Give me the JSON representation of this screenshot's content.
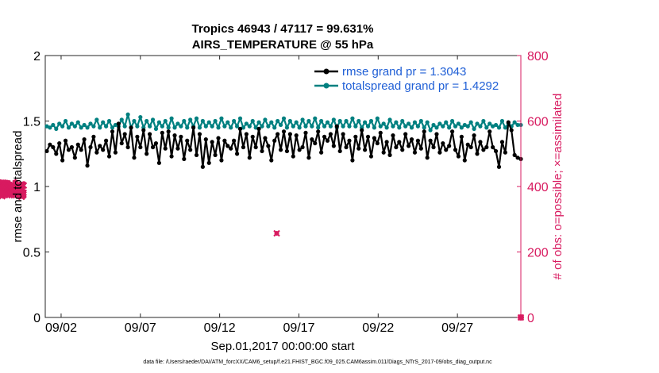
{
  "chart_data": {
    "type": "line",
    "title_line1": "Tropics 46943 / 47117 = 99.631%",
    "title_line2": "AIRS_TEMPERATURE @ 55 hPa",
    "xlabel": "Sep.01,2017 00:00:00 start",
    "ylabel_left": "rmse and totalspread",
    "ylabel_right": "# of obs: o=possible; ×=assimilated",
    "ylim_left": [
      0,
      2
    ],
    "ylim_right": [
      0,
      800
    ],
    "xlim": [
      0,
      30
    ],
    "yticks_left": [
      0,
      0.5,
      1,
      1.5,
      2
    ],
    "yticks_left_labels": [
      "0",
      "0.5",
      "1",
      "1.5",
      "2"
    ],
    "yticks_right": [
      0,
      200,
      400,
      600,
      800
    ],
    "yticks_right_labels": [
      "0",
      "200",
      "400",
      "600",
      "800"
    ],
    "xticks": [
      1,
      6,
      11,
      16,
      21,
      26
    ],
    "xtick_labels": [
      "09/02",
      "09/07",
      "09/12",
      "09/17",
      "09/22",
      "09/27"
    ],
    "legend": [
      {
        "label": "rmse grand pr = 1.3043",
        "color": "#000000"
      },
      {
        "label": "totalspread grand pr = 1.4292",
        "color": "#008080"
      }
    ],
    "colors": {
      "rmse": "#000000",
      "spread": "#008080",
      "obs": "#d81b60",
      "legend_text": "#1f5fd6",
      "right_axis": "#d81b60"
    },
    "series": [
      {
        "name": "rmse",
        "values": [
          1.27,
          1.32,
          1.3,
          1.25,
          1.33,
          1.2,
          1.35,
          1.28,
          1.3,
          1.22,
          1.32,
          1.28,
          1.36,
          1.16,
          1.3,
          1.38,
          1.26,
          1.31,
          1.28,
          1.35,
          1.23,
          1.42,
          1.26,
          1.48,
          1.33,
          1.4,
          1.3,
          1.45,
          1.22,
          1.38,
          1.3,
          1.43,
          1.25,
          1.4,
          1.3,
          1.33,
          1.18,
          1.41,
          1.29,
          1.42,
          1.23,
          1.39,
          1.29,
          1.38,
          1.21,
          1.35,
          1.28,
          1.45,
          1.24,
          1.4,
          1.15,
          1.36,
          1.18,
          1.34,
          1.24,
          1.37,
          1.2,
          1.35,
          1.31,
          1.29,
          1.35,
          1.25,
          1.44,
          1.3,
          1.4,
          1.22,
          1.38,
          1.3,
          1.44,
          1.27,
          1.37,
          1.31,
          1.2,
          1.35,
          1.4,
          1.28,
          1.42,
          1.27,
          1.4,
          1.23,
          1.39,
          1.28,
          1.3,
          1.41,
          1.22,
          1.36,
          1.33,
          1.42,
          1.26,
          1.38,
          1.35,
          1.4,
          1.31,
          1.46,
          1.27,
          1.4,
          1.3,
          1.35,
          1.2,
          1.38,
          1.29,
          1.43,
          1.28,
          1.38,
          1.23,
          1.37,
          1.33,
          1.41,
          1.26,
          1.34,
          1.24,
          1.39,
          1.3,
          1.34,
          1.28,
          1.4,
          1.31,
          1.36,
          1.26,
          1.35,
          1.29,
          1.42,
          1.22,
          1.35,
          1.3,
          1.4,
          1.26,
          1.33,
          1.28,
          1.31,
          1.42,
          1.28,
          1.23,
          1.38,
          1.2,
          1.32,
          1.3,
          1.39,
          1.25,
          1.34,
          1.28,
          1.3,
          1.42,
          1.3,
          1.27,
          1.15,
          1.34,
          1.26,
          1.49,
          1.43,
          1.24,
          1.22,
          1.21
        ]
      },
      {
        "name": "totalspread",
        "values": [
          1.46,
          1.45,
          1.47,
          1.44,
          1.48,
          1.46,
          1.5,
          1.45,
          1.48,
          1.46,
          1.49,
          1.45,
          1.47,
          1.45,
          1.48,
          1.46,
          1.51,
          1.45,
          1.49,
          1.46,
          1.5,
          1.45,
          1.47,
          1.46,
          1.51,
          1.46,
          1.55,
          1.45,
          1.5,
          1.46,
          1.53,
          1.45,
          1.5,
          1.46,
          1.51,
          1.44,
          1.49,
          1.46,
          1.5,
          1.45,
          1.52,
          1.45,
          1.48,
          1.46,
          1.5,
          1.45,
          1.51,
          1.46,
          1.52,
          1.45,
          1.5,
          1.46,
          1.49,
          1.46,
          1.5,
          1.45,
          1.52,
          1.46,
          1.49,
          1.45,
          1.5,
          1.46,
          1.52,
          1.45,
          1.48,
          1.46,
          1.5,
          1.45,
          1.49,
          1.46,
          1.51,
          1.46,
          1.49,
          1.45,
          1.5,
          1.47,
          1.52,
          1.45,
          1.5,
          1.46,
          1.49,
          1.45,
          1.51,
          1.46,
          1.5,
          1.46,
          1.52,
          1.45,
          1.5,
          1.46,
          1.49,
          1.46,
          1.51,
          1.45,
          1.5,
          1.46,
          1.5,
          1.46,
          1.52,
          1.46,
          1.5,
          1.45,
          1.49,
          1.46,
          1.5,
          1.45,
          1.52,
          1.46,
          1.48,
          1.45,
          1.51,
          1.46,
          1.49,
          1.45,
          1.5,
          1.46,
          1.48,
          1.45,
          1.49,
          1.46,
          1.5,
          1.45,
          1.49,
          1.43,
          1.47,
          1.45,
          1.48,
          1.46,
          1.49,
          1.45,
          1.5,
          1.46,
          1.48,
          1.45,
          1.47,
          1.46,
          1.49,
          1.44,
          1.48,
          1.46,
          1.5,
          1.45,
          1.48,
          1.46,
          1.47,
          1.45,
          1.5,
          1.45,
          1.48,
          1.46,
          1.49,
          1.47,
          1.47
        ]
      },
      {
        "name": "obs_possible",
        "values": [
          383,
          381,
          415,
          383,
          378,
          388,
          411,
          383,
          393,
          379,
          385,
          403,
          388,
          381,
          373,
          395,
          387,
          378,
          400,
          413,
          391,
          384,
          414,
          379,
          389,
          399,
          384,
          386,
          410,
          379,
          378,
          388,
          409,
          380,
          386,
          414,
          382,
          386,
          393,
          389,
          410,
          396,
          382,
          395,
          382,
          385,
          380,
          400,
          390,
          413,
          389,
          400,
          384,
          405,
          381,
          388,
          394,
          398,
          404,
          384,
          400,
          384,
          407,
          393,
          382,
          386,
          407,
          381,
          396,
          380,
          408,
          386,
          391,
          398,
          386,
          404,
          380,
          378,
          383,
          406,
          388,
          380,
          386,
          384,
          380,
          390,
          403,
          387,
          382,
          400,
          384,
          387,
          377,
          400,
          383,
          387,
          383,
          406,
          396,
          380,
          388,
          393,
          415,
          383,
          386,
          380,
          390,
          405,
          389,
          382,
          385,
          397,
          381,
          393,
          380,
          385,
          404,
          390,
          385,
          392,
          384,
          395,
          383,
          396,
          380,
          377,
          395,
          400,
          383,
          405,
          384,
          399,
          380,
          408,
          395,
          386,
          402,
          380,
          390,
          384,
          375,
          384,
          373,
          389,
          377,
          386,
          396,
          385,
          407,
          395,
          377,
          385,
          383,
          379,
          380,
          379,
          385,
          409
        ]
      },
      {
        "name": "obs_assimilated",
        "values": [
          378,
          378,
          411,
          378,
          372,
          384,
          405,
          379,
          389,
          373,
          381,
          398,
          383,
          376,
          370,
          391,
          382,
          374,
          396,
          409,
          386,
          379,
          411,
          374,
          384,
          395,
          380,
          382,
          406,
          374,
          374,
          383,
          404,
          374,
          382,
          409,
          378,
          383,
          389,
          385,
          404,
          392,
          377,
          391,
          378,
          381,
          375,
          396,
          386,
          410,
          385,
          394,
          381,
          400,
          377,
          384,
          390,
          394,
          399,
          381,
          396,
          379,
          403,
          389,
          378,
          382,
          402,
          377,
          391,
          377,
          404,
          382,
          386,
          395,
          382,
          400,
          375,
          373,
          379,
          402,
          383,
          376,
          381,
          379,
          377,
          386,
          397,
          383,
          379,
          395,
          380,
          382,
          373,
          396,
          379,
          383,
          380,
          402,
          392,
          375,
          384,
          388,
          410,
          379,
          381,
          375,
          386,
          400,
          385,
          378,
          381,
          393,
          377,
          388,
          377,
          381,
          400,
          385,
          380,
          387,
          380,
          390,
          377,
          392,
          375,
          371,
          390,
          395,
          378,
          400,
          380,
          394,
          376,
          404,
          391,
          382,
          398,
          376,
          386,
          380,
          371,
          379,
          368,
          384,
          372,
          381,
          391,
          380,
          402,
          390,
          372,
          381,
          380,
          375,
          376,
          375,
          381,
          403
        ]
      },
      {
        "name": "obs_outlier",
        "x": [
          14.6
        ],
        "values": [
          257
        ]
      },
      {
        "name": "obs_end",
        "x": [
          30
        ],
        "values": [
          0
        ]
      }
    ]
  },
  "footer": "data file: /Users/raeder/DAI/ATM_forcXX/CAM6_setup/f.e21.FHIST_BGC.f09_025.CAM6assim.011/Diags_NTrS_2017-09/obs_diag_output.nc"
}
